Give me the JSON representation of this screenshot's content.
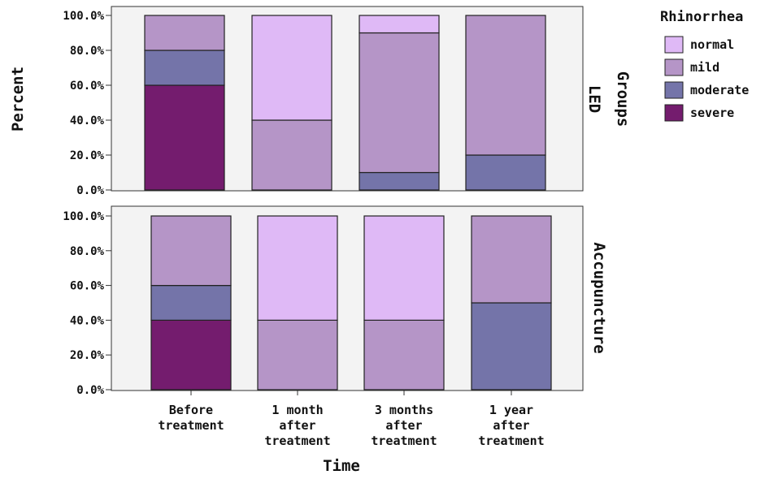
{
  "chart_data": {
    "type": "bar",
    "stacked": true,
    "xlabel": "Time",
    "ylabel": "Percent",
    "ylim": [
      0,
      100
    ],
    "yticks": [
      "0.0%",
      "20.0%",
      "40.0%",
      "60.0%",
      "80.0%",
      "100.0%"
    ],
    "categories": [
      [
        "Before",
        "treatment"
      ],
      [
        "1 month",
        "after",
        "treatment"
      ],
      [
        "3 months",
        "after",
        "treatment"
      ],
      [
        "1 year",
        "after",
        "treatment"
      ]
    ],
    "row_label": "Groups",
    "legend": {
      "title": "Rhinorrhea",
      "position": "right",
      "entries": [
        {
          "label": "normal",
          "color": "#dfb9f6"
        },
        {
          "label": "mild",
          "color": "#b595c7"
        },
        {
          "label": "moderate",
          "color": "#7474a9"
        },
        {
          "label": "severe",
          "color": "#741c6e"
        }
      ]
    },
    "panels": [
      {
        "title": "LED",
        "series": [
          {
            "name": "severe",
            "values": [
              60,
              0,
              0,
              0
            ]
          },
          {
            "name": "moderate",
            "values": [
              20,
              0,
              10,
              20
            ]
          },
          {
            "name": "mild",
            "values": [
              20,
              40,
              80,
              80
            ]
          },
          {
            "name": "normal",
            "values": [
              0,
              60,
              10,
              0
            ]
          }
        ]
      },
      {
        "title": "Accupuncture",
        "series": [
          {
            "name": "severe",
            "values": [
              40,
              0,
              0,
              0
            ]
          },
          {
            "name": "moderate",
            "values": [
              20,
              0,
              0,
              50
            ]
          },
          {
            "name": "mild",
            "values": [
              40,
              40,
              40,
              50
            ]
          },
          {
            "name": "normal",
            "values": [
              0,
              60,
              60,
              0
            ]
          }
        ]
      }
    ]
  }
}
